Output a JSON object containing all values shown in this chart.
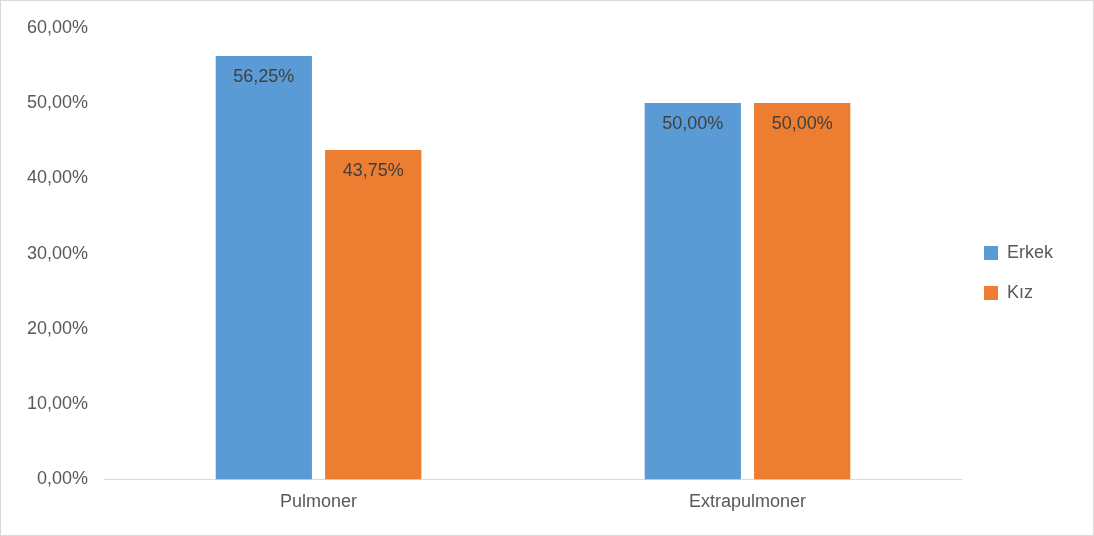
{
  "chart_data": {
    "type": "bar",
    "categories": [
      "Pulmoner",
      "Extrapulmoner"
    ],
    "series": [
      {
        "name": "Erkek",
        "color": "#5b9bd5",
        "values": [
          56.25,
          50
        ],
        "value_labels": [
          "56,25%",
          "50,00%"
        ]
      },
      {
        "name": "Kız",
        "color": "#ed7d31",
        "values": [
          43.75,
          50
        ],
        "value_labels": [
          "43,75%",
          "50,00%"
        ]
      }
    ],
    "ylim": [
      0,
      60
    ],
    "yticks": [
      {
        "value": 0,
        "label": "0,00%"
      },
      {
        "value": 10,
        "label": "10,00%"
      },
      {
        "value": 20,
        "label": "20,00%"
      },
      {
        "value": 30,
        "label": "30,00%"
      },
      {
        "value": 40,
        "label": "40,00%"
      },
      {
        "value": 50,
        "label": "50,00%"
      },
      {
        "value": 60,
        "label": "60,00%"
      }
    ],
    "grid": false,
    "legend": "right"
  }
}
